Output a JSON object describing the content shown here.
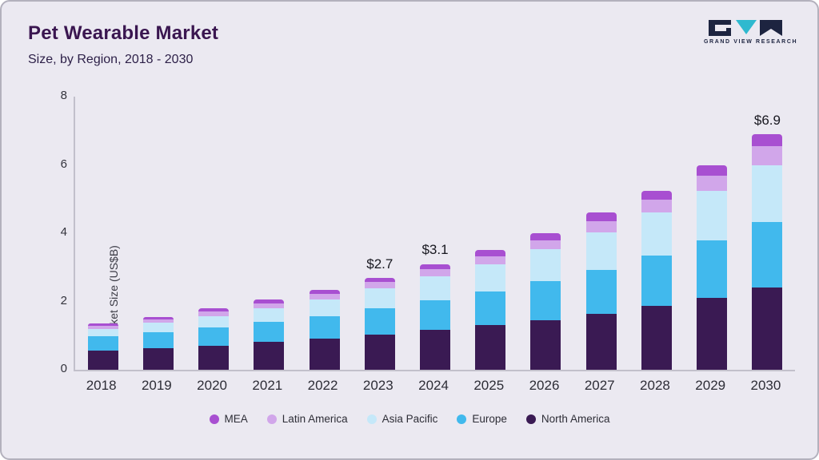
{
  "header": {
    "title": "Pet Wearable Market",
    "subtitle": "Size, by Region, 2018 - 2030"
  },
  "logo": {
    "text": "GRAND VIEW RESEARCH"
  },
  "chart_data": {
    "type": "bar",
    "stacked": true,
    "title": "Pet Wearable Market Size, by Region, 2018 - 2030",
    "xlabel": "",
    "ylabel": "Market Size (US$B)",
    "ylim": [
      0,
      8
    ],
    "yticks": [
      0,
      2,
      4,
      6,
      8
    ],
    "grid": false,
    "legend_position": "bottom",
    "categories": [
      "2018",
      "2019",
      "2020",
      "2021",
      "2022",
      "2023",
      "2024",
      "2025",
      "2026",
      "2027",
      "2028",
      "2029",
      "2030"
    ],
    "series": [
      {
        "name": "North America",
        "color": "#3a1a53",
        "values": [
          0.57,
          0.64,
          0.71,
          0.81,
          0.92,
          1.04,
          1.17,
          1.31,
          1.46,
          1.64,
          1.87,
          2.11,
          2.4
        ]
      },
      {
        "name": "Europe",
        "color": "#41b9ed",
        "values": [
          0.42,
          0.47,
          0.53,
          0.59,
          0.65,
          0.76,
          0.87,
          0.98,
          1.13,
          1.29,
          1.47,
          1.68,
          1.93
        ]
      },
      {
        "name": "Asia Pacific",
        "color": "#c5e8f9",
        "values": [
          0.21,
          0.26,
          0.33,
          0.4,
          0.49,
          0.58,
          0.7,
          0.8,
          0.94,
          1.09,
          1.26,
          1.44,
          1.67
        ]
      },
      {
        "name": "Latin America",
        "color": "#d1a6ea",
        "values": [
          0.09,
          0.11,
          0.13,
          0.15,
          0.17,
          0.19,
          0.21,
          0.24,
          0.27,
          0.33,
          0.38,
          0.45,
          0.55
        ]
      },
      {
        "name": "MEA",
        "color": "#a84fd1",
        "values": [
          0.06,
          0.07,
          0.1,
          0.1,
          0.12,
          0.13,
          0.15,
          0.17,
          0.2,
          0.25,
          0.27,
          0.32,
          0.35
        ]
      }
    ],
    "totals": [
      1.35,
      1.55,
      1.8,
      2.05,
      2.35,
      2.7,
      3.1,
      3.5,
      4.0,
      4.6,
      5.25,
      6.0,
      6.9
    ],
    "annotations": [
      {
        "category": "2023",
        "label": "$2.7"
      },
      {
        "category": "2024",
        "label": "$3.1"
      },
      {
        "category": "2030",
        "label": "$6.9"
      }
    ],
    "legend": [
      "MEA",
      "Latin America",
      "Asia Pacific",
      "Europe",
      "North America"
    ]
  }
}
